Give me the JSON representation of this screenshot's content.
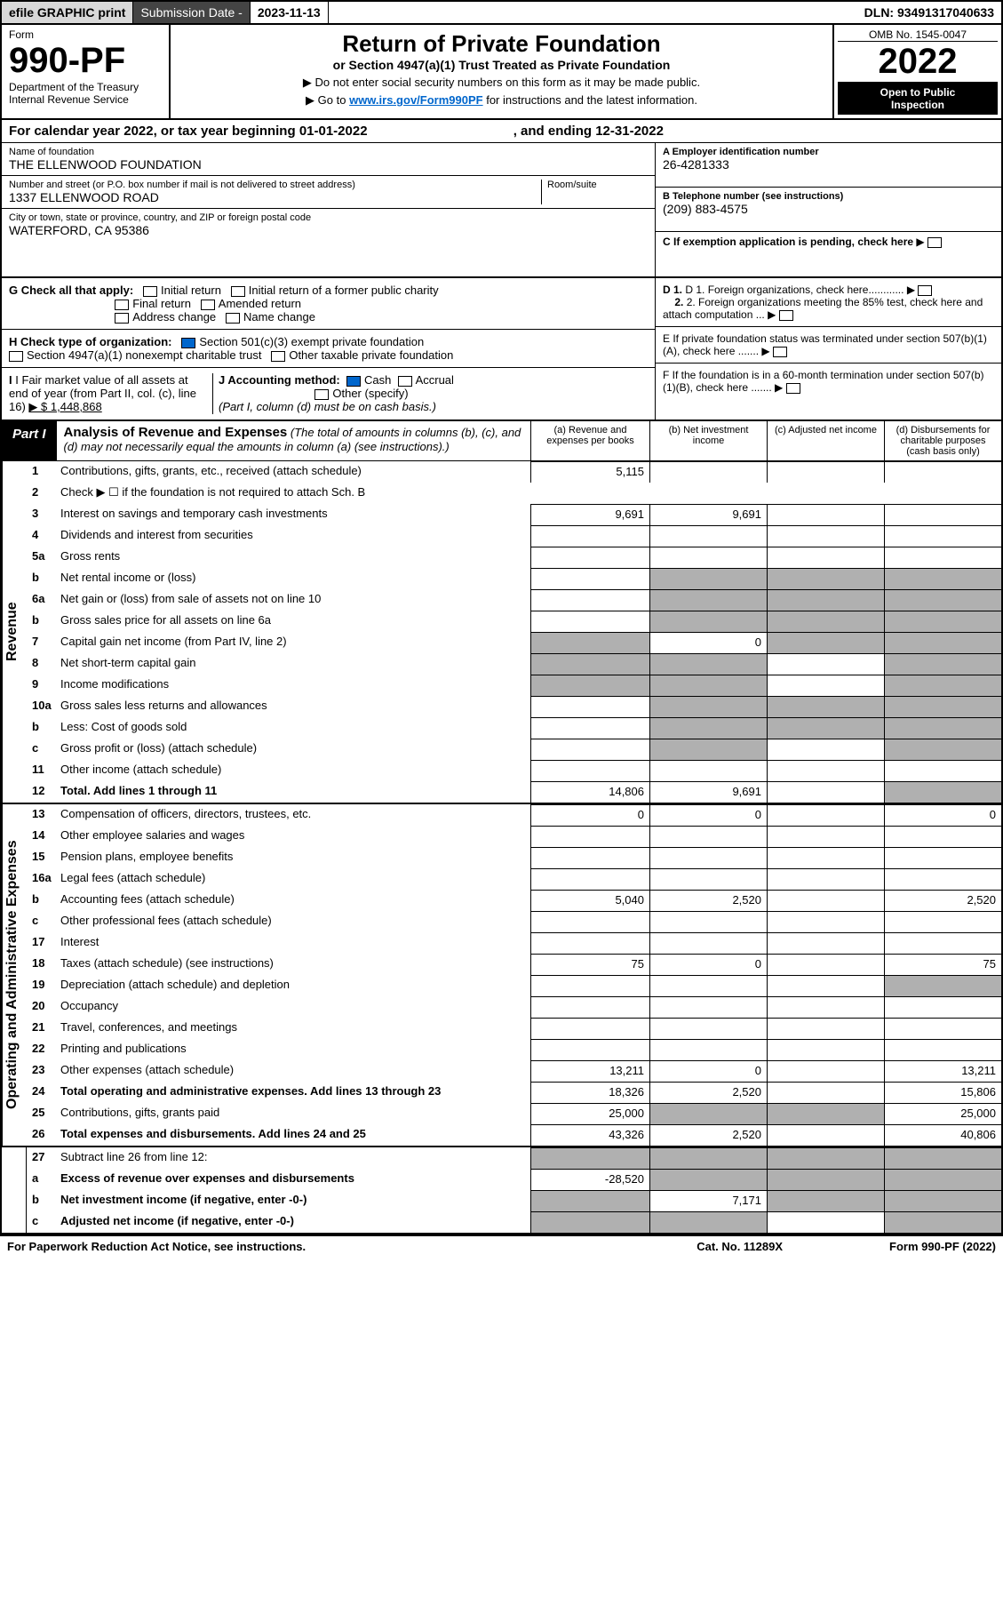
{
  "top": {
    "efile": "efile GRAPHIC print",
    "sdLabel": "Submission Date - ",
    "sdVal": "2023-11-13",
    "dln": "DLN: 93491317040633"
  },
  "hdr": {
    "form": "Form",
    "num": "990-PF",
    "dept": "Department of the Treasury",
    "irs": "Internal Revenue Service",
    "title": "Return of Private Foundation",
    "sub1": "or Section 4947(a)(1) Trust Treated as Private Foundation",
    "sub2a": "▶ Do not enter social security numbers on this form as it may be made public.",
    "sub2b": "▶ Go to ",
    "link": "www.irs.gov/Form990PF",
    "sub2c": " for instructions and the latest information.",
    "omb": "OMB No. 1545-0047",
    "year": "2022",
    "open": "Open to Public",
    "insp": "Inspection"
  },
  "cal": {
    "a": "For calendar year 2022, or tax year beginning ",
    "b": "01-01-2022",
    "c": ", and ending ",
    "d": "12-31-2022"
  },
  "ent": {
    "nameLbl": "Name of foundation",
    "name": "THE ELLENWOOD FOUNDATION",
    "addrLbl": "Number and street (or P.O. box number if mail is not delivered to street address)",
    "roomLbl": "Room/suite",
    "addr": "1337 ELLENWOOD ROAD",
    "cityLbl": "City or town, state or province, country, and ZIP or foreign postal code",
    "city": "WATERFORD, CA  95386",
    "einLbl": "A Employer identification number",
    "ein": "26-4281333",
    "telLbl": "B Telephone number (see instructions)",
    "tel": "(209) 883-4575",
    "cLbl": "C If exemption application is pending, check here"
  },
  "g": {
    "lbl": "G Check all that apply:",
    "o1": "Initial return",
    "o2": "Initial return of a former public charity",
    "o3": "Final return",
    "o4": "Amended return",
    "o5": "Address change",
    "o6": "Name change"
  },
  "h": {
    "lbl": "H Check type of organization:",
    "o1": "Section 501(c)(3) exempt private foundation",
    "o2": "Section 4947(a)(1) nonexempt charitable trust",
    "o3": "Other taxable private foundation"
  },
  "i": {
    "lbl": "I Fair market value of all assets at end of year (from Part II, col. (c), line 16)",
    "val": "▶ $  1,448,868"
  },
  "j": {
    "lbl": "J Accounting method:",
    "o1": "Cash",
    "o2": "Accrual",
    "o3": "Other (specify)",
    "note": "(Part I, column (d) must be on cash basis.)"
  },
  "d": {
    "d1": "D 1. Foreign organizations, check here............",
    "d2": "2. Foreign organizations meeting the 85% test, check here and attach computation ..."
  },
  "e": {
    "txt": "E  If private foundation status was terminated under section 507(b)(1)(A), check here ......."
  },
  "f": {
    "txt": "F  If the foundation is in a 60-month termination under section 507(b)(1)(B), check here ......."
  },
  "part1": {
    "lbl": "Part I",
    "title": "Analysis of Revenue and Expenses",
    "note": " (The total of amounts in columns (b), (c), and (d) may not necessarily equal the amounts in column (a) (see instructions).)",
    "ca": "(a) Revenue and expenses per books",
    "cb": "(b) Net investment income",
    "cc": "(c) Adjusted net income",
    "cd": "(d) Disbursements for charitable purposes (cash basis only)"
  },
  "side": {
    "rev": "Revenue",
    "exp": "Operating and Administrative Expenses"
  },
  "rows": [
    {
      "n": "1",
      "d": "Contributions, gifts, grants, etc., received (attach schedule)",
      "a": "5,115",
      "gb": 0,
      "gc": 0,
      "gd": 0
    },
    {
      "n": "2",
      "d": "Check ▶ ☐ if the foundation is not required to attach Sch. B",
      "noc": 1
    },
    {
      "n": "3",
      "d": "Interest on savings and temporary cash investments",
      "a": "9,691",
      "b": "9,691"
    },
    {
      "n": "4",
      "d": "Dividends and interest from securities"
    },
    {
      "n": "5a",
      "d": "Gross rents"
    },
    {
      "n": "b",
      "d": "Net rental income or (loss)",
      "gb": 1,
      "gc": 1,
      "gd": 1
    },
    {
      "n": "6a",
      "d": "Net gain or (loss) from sale of assets not on line 10",
      "gb": 1,
      "gc": 1,
      "gd": 1
    },
    {
      "n": "b",
      "d": "Gross sales price for all assets on line 6a",
      "gb": 1,
      "gc": 1,
      "gd": 1
    },
    {
      "n": "7",
      "d": "Capital gain net income (from Part IV, line 2)",
      "b": "0",
      "ga": 1,
      "gc": 1,
      "gd": 1
    },
    {
      "n": "8",
      "d": "Net short-term capital gain",
      "ga": 1,
      "gb": 1,
      "gd": 1
    },
    {
      "n": "9",
      "d": "Income modifications",
      "ga": 1,
      "gb": 1,
      "gd": 1
    },
    {
      "n": "10a",
      "d": "Gross sales less returns and allowances",
      "gb": 1,
      "gc": 1,
      "gd": 1
    },
    {
      "n": "b",
      "d": "Less: Cost of goods sold",
      "gb": 1,
      "gc": 1,
      "gd": 1
    },
    {
      "n": "c",
      "d": "Gross profit or (loss) (attach schedule)",
      "gb": 1,
      "gd": 1
    },
    {
      "n": "11",
      "d": "Other income (attach schedule)"
    },
    {
      "n": "12",
      "d": "Total. Add lines 1 through 11",
      "a": "14,806",
      "b": "9,691",
      "bold": 1,
      "gd": 1
    }
  ],
  "rows2": [
    {
      "n": "13",
      "d": "Compensation of officers, directors, trustees, etc.",
      "a": "0",
      "b": "0",
      "dv": "0"
    },
    {
      "n": "14",
      "d": "Other employee salaries and wages"
    },
    {
      "n": "15",
      "d": "Pension plans, employee benefits"
    },
    {
      "n": "16a",
      "d": "Legal fees (attach schedule)"
    },
    {
      "n": "b",
      "d": "Accounting fees (attach schedule)",
      "a": "5,040",
      "b": "2,520",
      "dv": "2,520"
    },
    {
      "n": "c",
      "d": "Other professional fees (attach schedule)"
    },
    {
      "n": "17",
      "d": "Interest"
    },
    {
      "n": "18",
      "d": "Taxes (attach schedule) (see instructions)",
      "a": "75",
      "b": "0",
      "dv": "75"
    },
    {
      "n": "19",
      "d": "Depreciation (attach schedule) and depletion",
      "gd": 1
    },
    {
      "n": "20",
      "d": "Occupancy"
    },
    {
      "n": "21",
      "d": "Travel, conferences, and meetings"
    },
    {
      "n": "22",
      "d": "Printing and publications"
    },
    {
      "n": "23",
      "d": "Other expenses (attach schedule)",
      "a": "13,211",
      "b": "0",
      "dv": "13,211"
    },
    {
      "n": "24",
      "d": "Total operating and administrative expenses. Add lines 13 through 23",
      "a": "18,326",
      "b": "2,520",
      "dv": "15,806",
      "bold": 1
    },
    {
      "n": "25",
      "d": "Contributions, gifts, grants paid",
      "a": "25,000",
      "dv": "25,000",
      "gb": 1,
      "gc": 1
    },
    {
      "n": "26",
      "d": "Total expenses and disbursements. Add lines 24 and 25",
      "a": "43,326",
      "b": "2,520",
      "dv": "40,806",
      "bold": 1
    }
  ],
  "rows3": [
    {
      "n": "27",
      "d": "Subtract line 26 from line 12:",
      "ga": 1,
      "gb": 1,
      "gc": 1,
      "gd": 1
    },
    {
      "n": "a",
      "d": "Excess of revenue over expenses and disbursements",
      "a": "-28,520",
      "bold": 1,
      "gb": 1,
      "gc": 1,
      "gd": 1
    },
    {
      "n": "b",
      "d": "Net investment income (if negative, enter -0-)",
      "b": "7,171",
      "bold": 1,
      "ga": 1,
      "gc": 1,
      "gd": 1
    },
    {
      "n": "c",
      "d": "Adjusted net income (if negative, enter -0-)",
      "bold": 1,
      "ga": 1,
      "gb": 1,
      "gd": 1
    }
  ],
  "foot": {
    "l": "For Paperwork Reduction Act Notice, see instructions.",
    "m": "Cat. No. 11289X",
    "r": "Form 990-PF (2022)"
  }
}
